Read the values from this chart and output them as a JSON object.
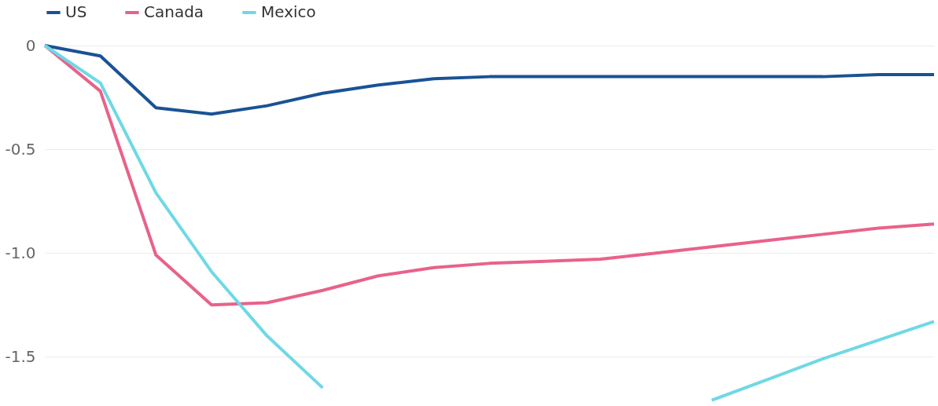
{
  "chart_data": {
    "type": "line",
    "categories": [
      null,
      null,
      null,
      null,
      null,
      null,
      null,
      null,
      null,
      null,
      null,
      null,
      null,
      null,
      null,
      null,
      null
    ],
    "series": [
      {
        "name": "US",
        "color": "#1a5294",
        "values": [
          0,
          -0.05,
          -0.3,
          -0.33,
          -0.29,
          -0.23,
          -0.19,
          -0.16,
          -0.15,
          -0.15,
          -0.15,
          -0.15,
          -0.15,
          -0.15,
          -0.15,
          -0.14,
          -0.14
        ]
      },
      {
        "name": "Canada",
        "color": "#e8628a",
        "values": [
          0,
          -0.22,
          -1.01,
          -1.25,
          -1.24,
          -1.18,
          -1.11,
          -1.07,
          -1.05,
          -1.04,
          -1.03,
          -1.0,
          -0.97,
          -0.94,
          -0.91,
          -0.88,
          -0.86
        ]
      },
      {
        "name": "Mexico",
        "color": "#6fd8e6",
        "values": [
          0,
          -0.18,
          -0.71,
          -1.09,
          -1.4,
          -1.65,
          null,
          null,
          null,
          null,
          null,
          null,
          -1.71,
          -1.61,
          -1.51,
          -1.42,
          -1.33
        ]
      }
    ],
    "ylim": [
      -1.73,
      0
    ],
    "yticks": [
      0,
      {
        "value": -0.5,
        "label": "-0.5"
      },
      {
        "value": -1.0,
        "label": "-1.0"
      },
      {
        "value": -1.5,
        "label": "-1.5"
      }
    ],
    "grid": "y",
    "legend": "top left",
    "tick_labels": "y",
    "marker": "none",
    "line_style": "solid"
  }
}
